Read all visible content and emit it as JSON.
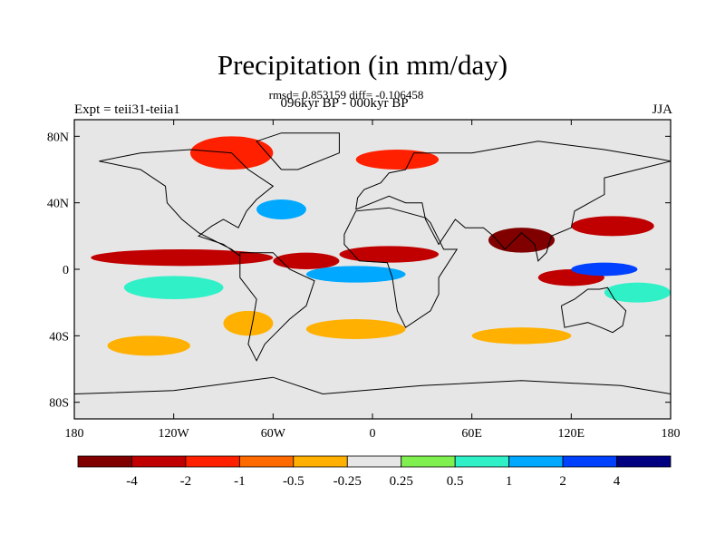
{
  "chart_data": {
    "type": "heatmap",
    "title": "Precipitation (in mm/day)",
    "stats_line": "rmsd= 0.853159 diff= -0.106458",
    "subtitle": "096kyr BP - 000kyr BP",
    "left_label": "Expt = teii31-teiia1",
    "right_label": "JJA",
    "x_ticks": [
      "180",
      "120W",
      "60W",
      "0",
      "60E",
      "120E",
      "180"
    ],
    "y_ticks": [
      "80N",
      "40N",
      "0",
      "40S",
      "80S"
    ],
    "xlim": [
      -180,
      180
    ],
    "ylim": [
      -90,
      90
    ],
    "colorbar": {
      "labels": [
        "-4",
        "-2",
        "-1",
        "-0.5",
        "-0.25",
        "0.25",
        "0.5",
        "1",
        "2",
        "4"
      ],
      "colors": [
        "#800000",
        "#c00000",
        "#ff2000",
        "#ff6a00",
        "#ffb000",
        "#e6e6e6",
        "#80f050",
        "#30f0c8",
        "#00a8ff",
        "#0040ff",
        "#000080"
      ]
    },
    "regions": [
      {
        "lon": [
          -170,
          -60
        ],
        "lat": [
          2,
          12
        ],
        "bin": 1
      },
      {
        "lon": [
          -60,
          -20
        ],
        "lat": [
          0,
          10
        ],
        "bin": 1
      },
      {
        "lon": [
          -20,
          40
        ],
        "lat": [
          4,
          14
        ],
        "bin": 1
      },
      {
        "lon": [
          70,
          110
        ],
        "lat": [
          10,
          25
        ],
        "bin": 0
      },
      {
        "lon": [
          100,
          140
        ],
        "lat": [
          -10,
          0
        ],
        "bin": 1
      },
      {
        "lon": [
          120,
          170
        ],
        "lat": [
          20,
          32
        ],
        "bin": 1
      },
      {
        "lon": [
          -110,
          -60
        ],
        "lat": [
          60,
          80
        ],
        "bin": 2
      },
      {
        "lon": [
          -10,
          40
        ],
        "lat": [
          60,
          72
        ],
        "bin": 2
      },
      {
        "lon": [
          -150,
          -90
        ],
        "lat": [
          -18,
          -4
        ],
        "bin": 7
      },
      {
        "lon": [
          -40,
          20
        ],
        "lat": [
          -8,
          2
        ],
        "bin": 8
      },
      {
        "lon": [
          120,
          160
        ],
        "lat": [
          -4,
          4
        ],
        "bin": 9
      },
      {
        "lon": [
          -70,
          -40
        ],
        "lat": [
          30,
          42
        ],
        "bin": 8
      },
      {
        "lon": [
          140,
          180
        ],
        "lat": [
          -20,
          -8
        ],
        "bin": 7
      },
      {
        "lon": [
          -90,
          -60
        ],
        "lat": [
          -40,
          -25
        ],
        "bin": 4
      },
      {
        "lon": [
          -160,
          -110
        ],
        "lat": [
          -52,
          -40
        ],
        "bin": 4
      },
      {
        "lon": [
          -40,
          20
        ],
        "lat": [
          -42,
          -30
        ],
        "bin": 4
      },
      {
        "lon": [
          60,
          120
        ],
        "lat": [
          -45,
          -35
        ],
        "bin": 4
      }
    ]
  }
}
